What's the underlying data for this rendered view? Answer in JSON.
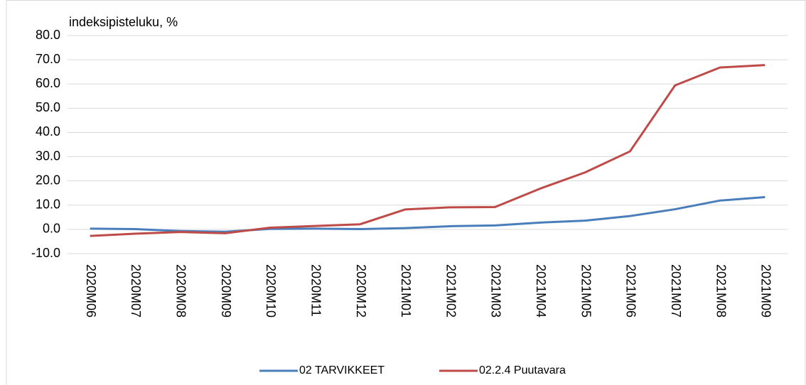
{
  "chart_data": {
    "type": "line",
    "y_label": "indeksipisteluku, %",
    "categories": [
      "2020M06",
      "2020M07",
      "2020M08",
      "2020M09",
      "2020M10",
      "2020M11",
      "2020M12",
      "2021M01",
      "2021M02",
      "2021M03",
      "2021M04",
      "2021M05",
      "2021M06",
      "2021M07",
      "2021M08",
      "2021M09"
    ],
    "series": [
      {
        "name": "02 TARVIKKEET",
        "color": "#4a7ebb",
        "values": [
          0.3,
          0.1,
          -0.7,
          -1.0,
          0.2,
          0.3,
          0.1,
          0.5,
          1.3,
          1.6,
          2.8,
          3.6,
          5.5,
          8.3,
          11.9,
          13.3
        ]
      },
      {
        "name": "02.2.4 Puutavara",
        "color": "#be4b48",
        "values": [
          -2.7,
          -1.8,
          -1.1,
          -1.6,
          0.7,
          1.4,
          2.1,
          8.2,
          9.1,
          9.2,
          16.8,
          23.5,
          32.2,
          59.4,
          66.8,
          67.8
        ]
      }
    ],
    "ylim": [
      -10,
      80
    ],
    "yticks": [
      {
        "value": -10,
        "label": "-10.0"
      },
      {
        "value": 0,
        "label": "0.0"
      },
      {
        "value": 10,
        "label": "10.0"
      },
      {
        "value": 20,
        "label": "20.0"
      },
      {
        "value": 30,
        "label": "30.0"
      },
      {
        "value": 40,
        "label": "40.0"
      },
      {
        "value": 50,
        "label": "50.0"
      },
      {
        "value": 60,
        "label": "60.0"
      },
      {
        "value": 70,
        "label": "70.0"
      },
      {
        "value": 80,
        "label": "80.0"
      }
    ],
    "grid": true,
    "legend": "bottom"
  }
}
